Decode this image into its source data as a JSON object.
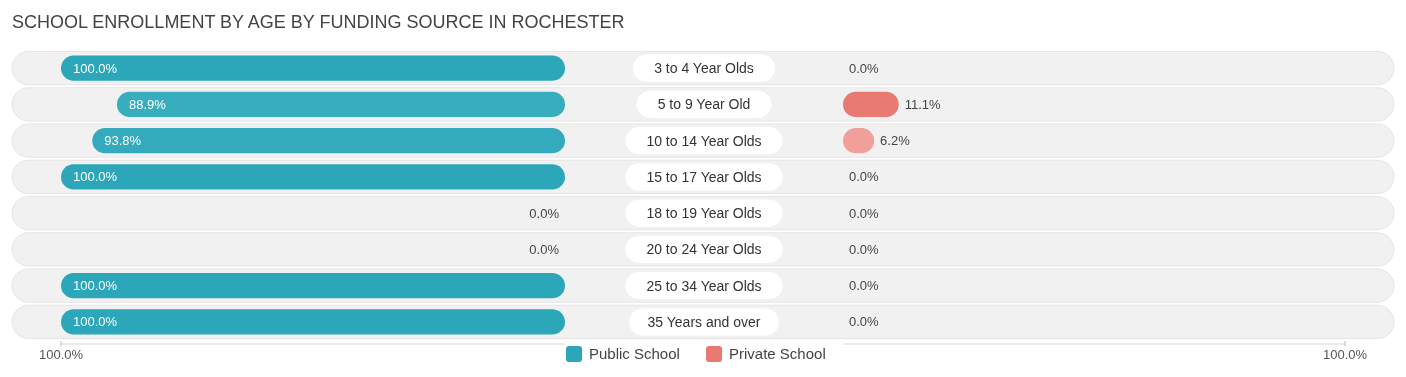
{
  "chart_data": [
    {
      "type": "bar",
      "orientation": "horizontal",
      "title": "SCHOOL ENROLLMENT BY AGE BY FUNDING SOURCE IN ROCHESTER",
      "categories": [
        "3 to 4 Year Olds",
        "5 to 9 Year Old",
        "10 to 14 Year Olds",
        "15 to 17 Year Olds",
        "18 to 19 Year Olds",
        "20 to 24 Year Olds",
        "25 to 34 Year Olds",
        "35 Years and over"
      ],
      "series": [
        {
          "name": "Public School",
          "color": "#2ba7b9",
          "colors": [
            "#2ba7b9",
            "#38adbe",
            "#33abbc",
            "#2ba7b9",
            "#82cfd9",
            "#82cfd9",
            "#2ba7b9",
            "#2ba7b9"
          ],
          "values": [
            100,
            88.9,
            93.8,
            100,
            0,
            0,
            100,
            100
          ],
          "value_labels": [
            "100.0%",
            "88.9%",
            "93.8%",
            "100.0%",
            "0.0%",
            "0.0%",
            "100.0%",
            "100.0%"
          ]
        }
      ],
      "xlim": [
        100,
        0
      ],
      "xticks": [
        {
          "value": 100,
          "label": "100.0%"
        }
      ],
      "legend": "bottom"
    },
    {
      "type": "bar",
      "orientation": "horizontal",
      "categories": [
        null,
        null,
        null,
        null,
        null,
        null,
        null,
        null
      ],
      "series": [
        {
          "name": "Private School",
          "color": "#e87a73",
          "colors": [
            "#f2b5b2",
            "#e87a73",
            "#f09f9a",
            "#f2b5b2",
            "#f2b5b2",
            "#f2b5b2",
            "#f2b5b2",
            "#f2b5b2"
          ],
          "values": [
            0,
            11.1,
            6.2,
            0,
            0,
            0,
            0,
            0
          ],
          "value_labels": [
            "0.0%",
            "11.1%",
            "6.2%",
            "0.0%",
            "0.0%",
            "0.0%",
            "0.0%",
            "0.0%"
          ]
        }
      ],
      "xlim": [
        0,
        100
      ],
      "xticks": [
        {
          "value": 100,
          "label": "100.0%"
        }
      ],
      "legend": "bottom"
    }
  ]
}
